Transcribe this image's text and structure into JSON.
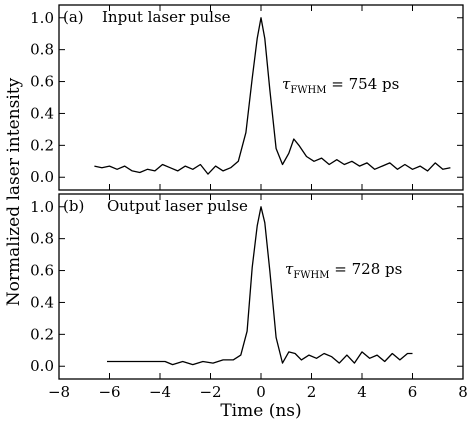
{
  "chart_data": [
    {
      "type": "line",
      "panel_label": "(a)",
      "title": "Input laser pulse",
      "annotation": {
        "symbol": "τ",
        "subscript": "FWHM",
        "text": " = 754 ps"
      },
      "xlim": [
        -8,
        8
      ],
      "ylim": [
        -0.08,
        1.08
      ],
      "yticks": [
        0.0,
        0.2,
        0.4,
        0.6,
        0.8,
        1.0
      ],
      "ytick_labels": [
        "0.0",
        "0.2",
        "0.4",
        "0.6",
        "0.8",
        "1.0"
      ],
      "grid": false,
      "series": [
        {
          "x": [
            -6.6,
            -6.3,
            -6.0,
            -5.7,
            -5.4,
            -5.1,
            -4.8,
            -4.5,
            -4.2,
            -3.9,
            -3.6,
            -3.3,
            -3.0,
            -2.7,
            -2.4,
            -2.1,
            -1.8,
            -1.5,
            -1.2,
            -0.9,
            -0.6,
            -0.35,
            -0.15,
            0.0,
            0.15,
            0.35,
            0.6,
            0.85,
            1.1,
            1.3,
            1.5,
            1.8,
            2.1,
            2.4,
            2.7,
            3.0,
            3.3,
            3.6,
            3.9,
            4.2,
            4.5,
            4.8,
            5.1,
            5.4,
            5.7,
            6.0,
            6.3,
            6.6,
            6.9,
            7.2,
            7.5
          ],
          "y": [
            0.07,
            0.06,
            0.07,
            0.05,
            0.07,
            0.04,
            0.03,
            0.05,
            0.04,
            0.08,
            0.06,
            0.04,
            0.07,
            0.05,
            0.08,
            0.02,
            0.07,
            0.04,
            0.06,
            0.1,
            0.28,
            0.62,
            0.87,
            1.0,
            0.87,
            0.55,
            0.18,
            0.08,
            0.15,
            0.24,
            0.2,
            0.13,
            0.1,
            0.12,
            0.08,
            0.11,
            0.08,
            0.1,
            0.07,
            0.09,
            0.05,
            0.07,
            0.09,
            0.05,
            0.08,
            0.05,
            0.07,
            0.04,
            0.09,
            0.05,
            0.06
          ]
        }
      ]
    },
    {
      "type": "line",
      "panel_label": "(b)",
      "title": "Output laser pulse",
      "annotation": {
        "symbol": "τ",
        "subscript": "FWHM",
        "text": " = 728 ps"
      },
      "xlim": [
        -8,
        8
      ],
      "ylim": [
        -0.08,
        1.08
      ],
      "yticks": [
        0.0,
        0.2,
        0.4,
        0.6,
        0.8,
        1.0
      ],
      "ytick_labels": [
        "0.0",
        "0.2",
        "0.4",
        "0.6",
        "0.8",
        "1.0"
      ],
      "xticks": [
        -8,
        -6,
        -4,
        -2,
        0,
        2,
        4,
        6,
        8
      ],
      "xtick_labels": [
        "−8",
        "−6",
        "−4",
        "−2",
        "0",
        "2",
        "4",
        "6",
        "8"
      ],
      "grid": false,
      "series": [
        {
          "x": [
            -6.1,
            -3.8,
            -3.5,
            -3.1,
            -2.7,
            -2.3,
            -1.9,
            -1.5,
            -1.1,
            -0.8,
            -0.55,
            -0.35,
            -0.15,
            0.0,
            0.15,
            0.35,
            0.6,
            0.85,
            1.1,
            1.35,
            1.6,
            1.9,
            2.2,
            2.5,
            2.8,
            3.1,
            3.4,
            3.7,
            4.0,
            4.3,
            4.6,
            4.9,
            5.2,
            5.5,
            5.8,
            6.0
          ],
          "y": [
            0.03,
            0.03,
            0.01,
            0.03,
            0.01,
            0.03,
            0.02,
            0.04,
            0.04,
            0.07,
            0.22,
            0.62,
            0.88,
            1.0,
            0.9,
            0.6,
            0.18,
            0.02,
            0.09,
            0.08,
            0.04,
            0.07,
            0.05,
            0.08,
            0.06,
            0.02,
            0.07,
            0.02,
            0.09,
            0.05,
            0.07,
            0.03,
            0.08,
            0.04,
            0.08,
            0.08
          ]
        }
      ]
    }
  ],
  "xlabel": "Time (ns)",
  "ylabel": "Normalized laser intensity"
}
